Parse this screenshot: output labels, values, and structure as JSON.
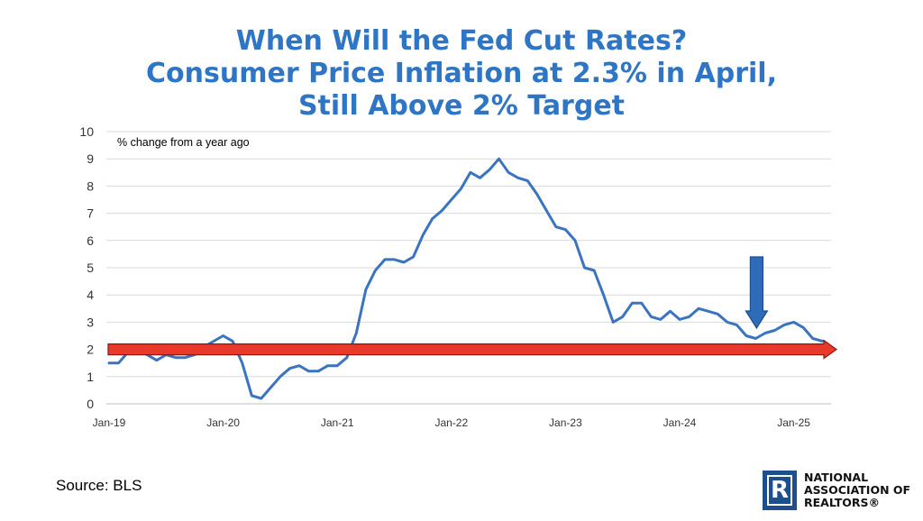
{
  "title": {
    "line1": "When Will the Fed Cut Rates?",
    "line2": "Consumer Price Inflation at 2.3% in April,",
    "line3": "Still Above 2% Target"
  },
  "source": "Source: BLS",
  "logo": {
    "mark": "R",
    "line1": "NATIONAL",
    "line2": "ASSOCIATION OF",
    "line3": "REALTORS®"
  },
  "colors": {
    "title": "#2E75C6",
    "line": "#3A74C1",
    "target_arrow": "#E8392B",
    "target_arrow_outline": "#8B1A12",
    "callout_arrow": "#2E6BB8",
    "callout_arrow_outline": "#1F4E8C",
    "grid": "#D9D9D9"
  },
  "chart_data": {
    "type": "line",
    "title": "",
    "annotation": "% change from a year ago",
    "ylim": [
      0,
      10
    ],
    "y_ticks": [
      "0",
      "1",
      "2",
      "3",
      "4",
      "5",
      "6",
      "7",
      "8",
      "9",
      "10"
    ],
    "x_tick_labels": [
      "Jan-19",
      "Jan-20",
      "Jan-21",
      "Jan-22",
      "Jan-23",
      "Jan-24",
      "Jan-25"
    ],
    "grid": "horizontal",
    "target_line": 2,
    "callout_arrow_month": "Sep-24",
    "series": [
      {
        "start": "Jan-19",
        "frequency": "monthly",
        "values": [
          1.5,
          1.5,
          1.9,
          2.0,
          1.8,
          1.6,
          1.8,
          1.7,
          1.7,
          1.8,
          2.1,
          2.3,
          2.5,
          2.3,
          1.5,
          0.3,
          0.2,
          0.6,
          1.0,
          1.3,
          1.4,
          1.2,
          1.2,
          1.4,
          1.4,
          1.7,
          2.6,
          4.2,
          4.9,
          5.3,
          5.3,
          5.2,
          5.4,
          6.2,
          6.8,
          7.1,
          7.5,
          7.9,
          8.5,
          8.3,
          8.6,
          9.0,
          8.5,
          8.3,
          8.2,
          7.7,
          7.1,
          6.5,
          6.4,
          6.0,
          5.0,
          4.9,
          4.0,
          3.0,
          3.2,
          3.7,
          3.7,
          3.2,
          3.1,
          3.4,
          3.1,
          3.2,
          3.5,
          3.4,
          3.3,
          3.0,
          2.9,
          2.5,
          2.4,
          2.6,
          2.7,
          2.9,
          3.0,
          2.8,
          2.4,
          2.3
        ]
      }
    ]
  }
}
